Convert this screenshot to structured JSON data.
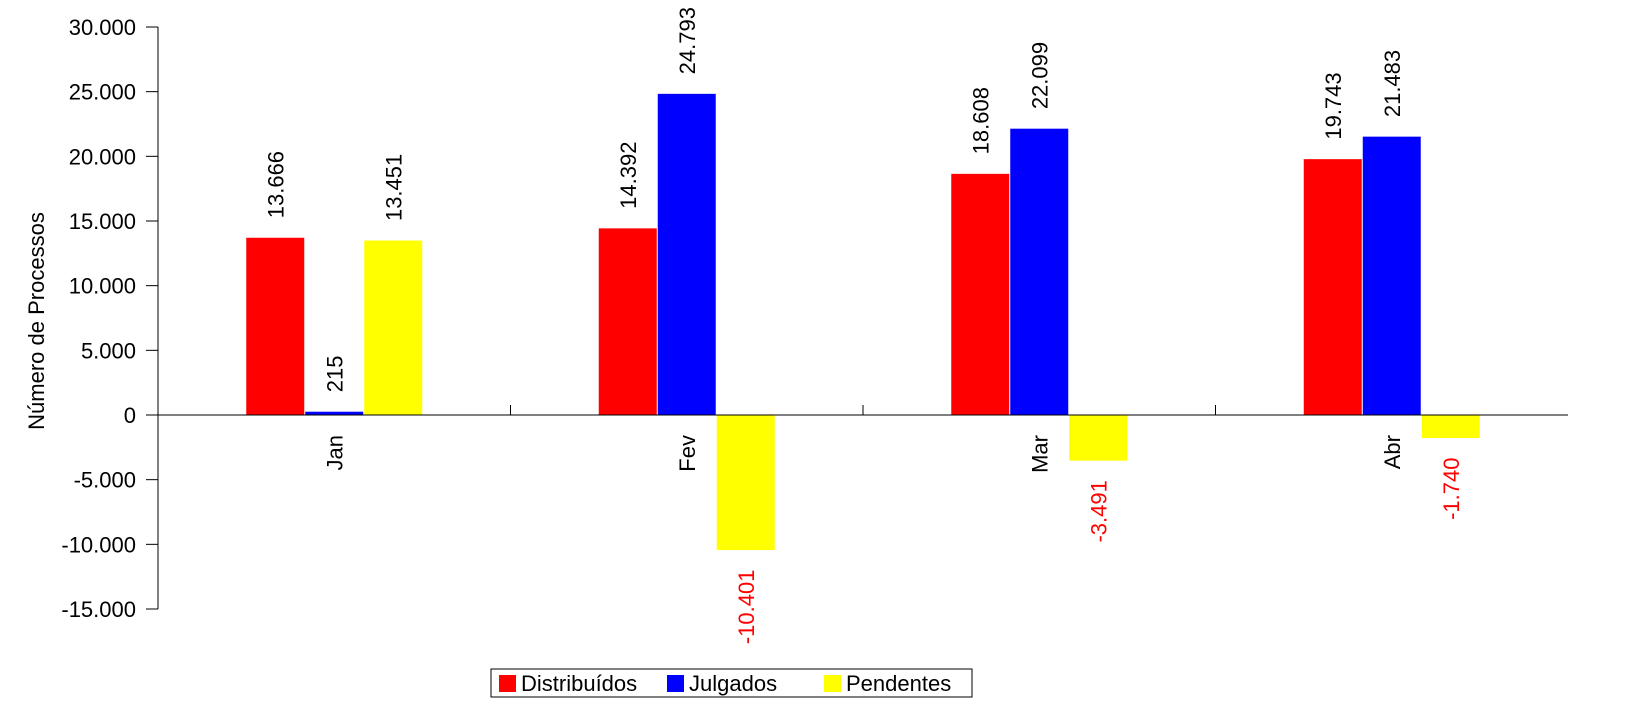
{
  "chart_data": {
    "type": "bar",
    "categories": [
      "Jan",
      "Fev",
      "Mar",
      "Abr"
    ],
    "series": [
      {
        "name": "Distribuídos",
        "color": "#ff0000",
        "values": [
          13666,
          14392,
          18608,
          19743
        ],
        "labels": [
          "13.666",
          "14.392",
          "18.608",
          "19.743"
        ]
      },
      {
        "name": "Julgados",
        "color": "#0000ff",
        "values": [
          215,
          24793,
          22099,
          21483
        ],
        "labels": [
          "215",
          "24.793",
          "22.099",
          "21.483"
        ]
      },
      {
        "name": "Pendentes",
        "color": "#ffff00",
        "values": [
          13451,
          -10401,
          -3491,
          -1740
        ],
        "labels": [
          "13.451",
          "-10.401",
          "-3.491",
          "-1.740"
        ]
      }
    ],
    "negative_label_color": "#ff0000",
    "title": "",
    "xlabel": "",
    "ylabel": "Número de Processos",
    "ylim": [
      -15000,
      30000
    ],
    "yticks": [
      30000,
      25000,
      20000,
      15000,
      10000,
      5000,
      0,
      -5000,
      -10000,
      -15000
    ],
    "ytick_labels": [
      "30.000",
      "25.000",
      "20.000",
      "15.000",
      "10.000",
      "5.000",
      "0",
      "-5.000",
      "-10.000",
      "-15.000"
    ],
    "grid": false,
    "legend_position": "bottom-center"
  }
}
